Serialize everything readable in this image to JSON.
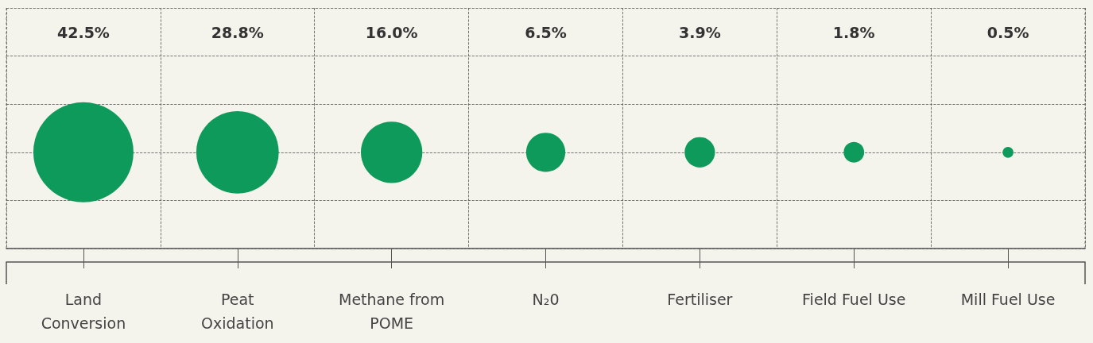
{
  "chart_data": {
    "type": "other",
    "categories": [
      "Land\nConversion",
      "Peat\nOxidation",
      "Methane from\nPOME",
      "N₂0",
      "Fertiliser",
      "Field Fuel Use",
      "Mill Fuel Use"
    ],
    "values": [
      42.5,
      28.8,
      16.0,
      6.5,
      3.9,
      1.8,
      0.5
    ],
    "value_labels": [
      "42.5%",
      "28.8%",
      "16.0%",
      "6.5%",
      "3.9%",
      "1.8%",
      "0.5%"
    ],
    "color": "#0e9a5a"
  }
}
